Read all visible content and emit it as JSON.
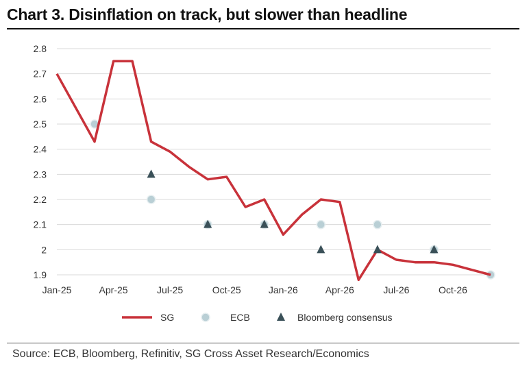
{
  "title": "Chart 3. Disinflation  on track, but slower than  headline",
  "source": "Source: ECB, Bloomberg, Refinitiv, SG Cross Asset Research/Economics",
  "chart_data": {
    "type": "line",
    "ylim": [
      1.9,
      2.8
    ],
    "yticks": [
      "1.9",
      "2",
      "2.1",
      "2.2",
      "2.3",
      "2.4",
      "2.5",
      "2.6",
      "2.7",
      "2.8"
    ],
    "xlim": [
      "2025-01",
      "2026-12"
    ],
    "xticks": [
      {
        "label": "Jan-25",
        "month": "2025-01"
      },
      {
        "label": "Apr-25",
        "month": "2025-04"
      },
      {
        "label": "Jul-25",
        "month": "2025-07"
      },
      {
        "label": "Oct-25",
        "month": "2025-10"
      },
      {
        "label": "Jan-26",
        "month": "2026-01"
      },
      {
        "label": "Apr-26",
        "month": "2026-04"
      },
      {
        "label": "Jul-26",
        "month": "2026-07"
      },
      {
        "label": "Oct-26",
        "month": "2026-10"
      }
    ],
    "grid": true,
    "legend_position": "bottom",
    "series": [
      {
        "name": "SG",
        "style": "line",
        "color": "#c8323a",
        "points": [
          {
            "x": "2025-01",
            "y": 2.7
          },
          {
            "x": "2025-03",
            "y": 2.43
          },
          {
            "x": "2025-04",
            "y": 2.75
          },
          {
            "x": "2025-05",
            "y": 2.75
          },
          {
            "x": "2025-06",
            "y": 2.43
          },
          {
            "x": "2025-07",
            "y": 2.39
          },
          {
            "x": "2025-08",
            "y": 2.33
          },
          {
            "x": "2025-09",
            "y": 2.28
          },
          {
            "x": "2025-10",
            "y": 2.29
          },
          {
            "x": "2025-11",
            "y": 2.17
          },
          {
            "x": "2025-12",
            "y": 2.2
          },
          {
            "x": "2026-01",
            "y": 2.06
          },
          {
            "x": "2026-02",
            "y": 2.14
          },
          {
            "x": "2026-03",
            "y": 2.2
          },
          {
            "x": "2026-04",
            "y": 2.19
          },
          {
            "x": "2026-05",
            "y": 1.88
          },
          {
            "x": "2026-06",
            "y": 2.0
          },
          {
            "x": "2026-07",
            "y": 1.96
          },
          {
            "x": "2026-08",
            "y": 1.95
          },
          {
            "x": "2026-09",
            "y": 1.95
          },
          {
            "x": "2026-10",
            "y": 1.94
          },
          {
            "x": "2026-11",
            "y": 1.92
          },
          {
            "x": "2026-12",
            "y": 1.9
          }
        ]
      },
      {
        "name": "ECB",
        "style": "circle",
        "color": "#b9cfd5",
        "points": [
          {
            "x": "2025-03",
            "y": 2.5
          },
          {
            "x": "2025-06",
            "y": 2.2
          },
          {
            "x": "2025-09",
            "y": 2.1
          },
          {
            "x": "2025-12",
            "y": 2.1
          },
          {
            "x": "2026-03",
            "y": 2.1
          },
          {
            "x": "2026-06",
            "y": 2.1
          },
          {
            "x": "2026-09",
            "y": 2.0
          },
          {
            "x": "2026-12",
            "y": 1.9
          }
        ]
      },
      {
        "name": "Bloomberg consensus",
        "style": "triangle",
        "color": "#3a5058",
        "points": [
          {
            "x": "2025-06",
            "y": 2.3
          },
          {
            "x": "2025-09",
            "y": 2.1
          },
          {
            "x": "2025-12",
            "y": 2.1
          },
          {
            "x": "2026-03",
            "y": 2.0
          },
          {
            "x": "2026-06",
            "y": 2.0
          },
          {
            "x": "2026-09",
            "y": 2.0
          }
        ]
      }
    ]
  }
}
